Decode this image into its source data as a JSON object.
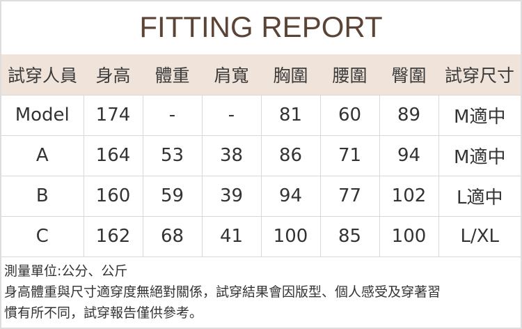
{
  "title": "FITTING REPORT",
  "headers": [
    "試穿人員",
    "身高",
    "體重",
    "肩寬",
    "胸圍",
    "腰圍",
    "臀圍",
    "試穿尺寸"
  ],
  "rows": [
    [
      "Model",
      "174",
      "-",
      "-",
      "81",
      "60",
      "89",
      "M適中"
    ],
    [
      "A",
      "164",
      "53",
      "38",
      "86",
      "71",
      "94",
      "M適中"
    ],
    [
      "B",
      "160",
      "59",
      "39",
      "94",
      "77",
      "102",
      "L適中"
    ],
    [
      "C",
      "162",
      "68",
      "41",
      "100",
      "85",
      "100",
      "L/XL"
    ]
  ],
  "notes": [
    "測量單位:公分、公斤",
    "身高體重與尺寸適穿度無絕對關係，試穿結果會因版型、個人感受及穿著習",
    "慣有所不同，試穿報告僅供參考。"
  ],
  "colors": {
    "title": "#5b4335",
    "header_bg": "#efe3da"
  }
}
